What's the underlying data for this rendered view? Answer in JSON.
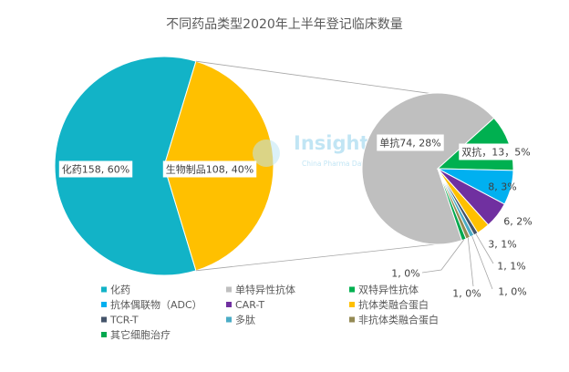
{
  "watermark": {
    "brand": "Insight",
    "tagline": "China Pharma Data"
  },
  "chart_data": {
    "type": "pie",
    "variant": "pie-of-pie",
    "title": "不同药品类型2020年上半年登记临床数量",
    "main_pie": {
      "slices": [
        {
          "name": "化药",
          "value": 158,
          "label": "化药158, 60%",
          "color": "#12B3C7"
        },
        {
          "value": 108,
          "label": "生物制品108, 40%",
          "color": "#FFC000"
        }
      ]
    },
    "secondary_pie": {
      "slices": [
        {
          "name": "单特异性抗体",
          "value": 74,
          "label": "单抗74, 28%",
          "color": "#BFBFBF"
        },
        {
          "name": "双特异性抗体",
          "value": 13,
          "label": "双抗，13，5%",
          "color": "#00B050"
        },
        {
          "name": "抗体偶联物（ADC）",
          "value": 8,
          "label": "8, 3%",
          "color": "#00B0F0"
        },
        {
          "name": "CAR-T",
          "value": 6,
          "label": "6, 2%",
          "color": "#7030A0"
        },
        {
          "name": "抗体类融合蛋白",
          "value": 3,
          "label": "3, 1%",
          "color": "#FFC000"
        },
        {
          "name": "TCR-T",
          "value": 1,
          "label": "1, 1%",
          "color": "#44546A"
        },
        {
          "name": "多肽",
          "value": 1,
          "label": "1, 0%",
          "color": "#4BACC6"
        },
        {
          "name": "非抗体类融合蛋白",
          "value": 1,
          "label": "1, 0%",
          "color": "#948A54"
        },
        {
          "name": "其它细胞治疗",
          "value": 1,
          "label": "1, 0%",
          "color": "#00A84F"
        }
      ]
    },
    "legend": {
      "placement": "bottom"
    }
  }
}
